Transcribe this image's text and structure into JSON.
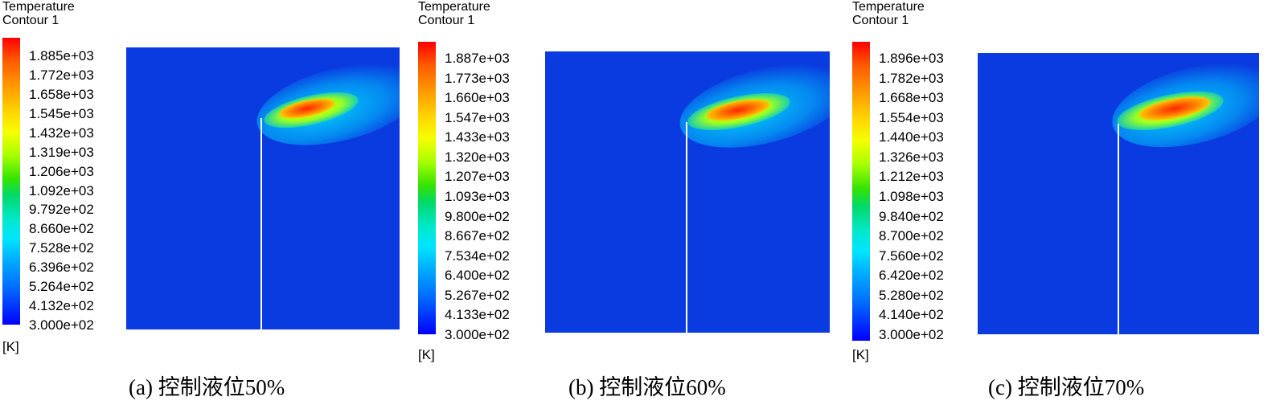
{
  "panels": [
    {
      "legend_title_line1": "Temperature",
      "legend_title_line2": "Contour 1",
      "ticks": [
        "1.885e+03",
        "1.772e+03",
        "1.658e+03",
        "1.545e+03",
        "1.432e+03",
        "1.319e+03",
        "1.206e+03",
        "1.092e+03",
        "9.792e+02",
        "8.660e+02",
        "7.528e+02",
        "6.396e+02",
        "5.264e+02",
        "4.132e+02",
        "3.000e+02"
      ],
      "unit": "[K]",
      "caption": "(a) 控制液位50%",
      "colors": {
        "field": "#0a3be0"
      }
    },
    {
      "legend_title_line1": "Temperature",
      "legend_title_line2": "Contour 1",
      "ticks": [
        "1.887e+03",
        "1.773e+03",
        "1.660e+03",
        "1.547e+03",
        "1.433e+03",
        "1.320e+03",
        "1.207e+03",
        "1.093e+03",
        "9.800e+02",
        "8.667e+02",
        "7.534e+02",
        "6.400e+02",
        "5.267e+02",
        "4.133e+02",
        "3.000e+02"
      ],
      "unit": "[K]",
      "caption": "(b) 控制液位60%",
      "colors": {
        "field": "#0a3be0"
      }
    },
    {
      "legend_title_line1": "Temperature",
      "legend_title_line2": "Contour 1",
      "ticks": [
        "1.896e+03",
        "1.782e+03",
        "1.668e+03",
        "1.554e+03",
        "1.440e+03",
        "1.326e+03",
        "1.212e+03",
        "1.098e+03",
        "9.840e+02",
        "8.700e+02",
        "7.560e+02",
        "6.420e+02",
        "5.280e+02",
        "4.140e+02",
        "3.000e+02"
      ],
      "unit": "[K]",
      "caption": "(c) 控制液位70%",
      "colors": {
        "field": "#0a3be0"
      }
    }
  ]
}
